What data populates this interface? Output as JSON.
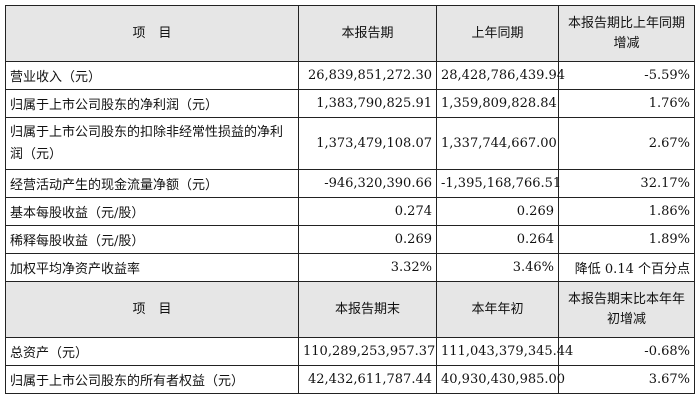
{
  "table1": {
    "headers": [
      "项　目",
      "本报告期",
      "上年同期",
      "本报告期比上年同期增减"
    ],
    "rows": [
      [
        "营业收入（元）",
        "26,839,851,272.30",
        "28,428,786,439.94",
        "-5.59%"
      ],
      [
        "归属于上市公司股东的净利润（元）",
        "1,383,790,825.91",
        "1,359,809,828.84",
        "1.76%"
      ],
      [
        "归属于上市公司股东的扣除非经常性损益的净利润（元）",
        "1,373,479,108.07",
        "1,337,744,667.00",
        "2.67%"
      ],
      [
        "经营活动产生的现金流量净额（元）",
        "-946,320,390.66",
        "-1,395,168,766.51",
        "32.17%"
      ],
      [
        "基本每股收益（元/股）",
        "0.274",
        "0.269",
        "1.86%"
      ],
      [
        "稀释每股收益（元/股）",
        "0.269",
        "0.264",
        "1.89%"
      ],
      [
        "加权平均净资产收益率",
        "3.32%",
        "3.46%",
        "降低 0.14 个百分点"
      ]
    ]
  },
  "table2": {
    "headers": [
      "项　目",
      "本报告期末",
      "本年年初",
      "本报告期末比本年年初增减"
    ],
    "rows": [
      [
        "总资产（元）",
        "110,289,253,957.37",
        "111,043,379,345.44",
        "-0.68%"
      ],
      [
        "归属于上市公司股东的所有者权益（元）",
        "42,432,611,787.44",
        "40,930,430,985.00",
        "3.67%"
      ]
    ]
  }
}
